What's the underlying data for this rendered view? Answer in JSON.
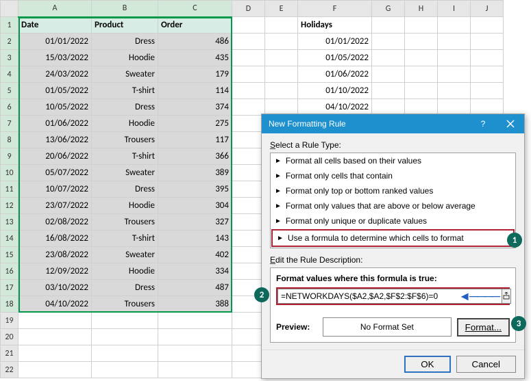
{
  "columns": [
    "A",
    "B",
    "C",
    "D",
    "E",
    "F",
    "G",
    "H",
    "I",
    "J"
  ],
  "headers": {
    "date": "Date",
    "product": "Product",
    "order": "Order",
    "holidays": "Holidays"
  },
  "rows": [
    {
      "date": "01/01/2022",
      "product": "Dress",
      "order": 486
    },
    {
      "date": "15/03/2022",
      "product": "Hoodie",
      "order": 435
    },
    {
      "date": "24/03/2022",
      "product": "Sweater",
      "order": 179
    },
    {
      "date": "01/05/2022",
      "product": "T-shirt",
      "order": 114
    },
    {
      "date": "10/05/2022",
      "product": "Dress",
      "order": 374
    },
    {
      "date": "01/06/2022",
      "product": "Hoodie",
      "order": 275
    },
    {
      "date": "13/06/2022",
      "product": "Trousers",
      "order": 117
    },
    {
      "date": "20/06/2022",
      "product": "T-shirt",
      "order": 366
    },
    {
      "date": "05/07/2022",
      "product": "Sweater",
      "order": 389
    },
    {
      "date": "10/07/2022",
      "product": "Dress",
      "order": 395
    },
    {
      "date": "23/07/2022",
      "product": "Hoodie",
      "order": 304
    },
    {
      "date": "02/08/2022",
      "product": "Trousers",
      "order": 327
    },
    {
      "date": "16/08/2022",
      "product": "T-shirt",
      "order": 143
    },
    {
      "date": "23/08/2022",
      "product": "Sweater",
      "order": 402
    },
    {
      "date": "12/09/2022",
      "product": "Hoodie",
      "order": 334
    },
    {
      "date": "03/10/2022",
      "product": "Dress",
      "order": 487
    },
    {
      "date": "04/10/2022",
      "product": "Trousers",
      "order": 388
    }
  ],
  "holidays": [
    "01/01/2022",
    "01/05/2022",
    "01/06/2022",
    "01/10/2022",
    "04/10/2022"
  ],
  "dialog": {
    "title": "New Formatting Rule",
    "select_label": "Select a Rule Type:",
    "rules": [
      "Format all cells based on their values",
      "Format only cells that contain",
      "Format only top or bottom ranked values",
      "Format only values that are above or below average",
      "Format only unique or duplicate values",
      "Use a formula to determine which cells to format"
    ],
    "edit_label": "Edit the Rule Description:",
    "formula_label": "Format values where this formula is true:",
    "formula_value": "=NETWORKDAYS($A2,$A2,$F$2:$F$6)=0",
    "preview_label": "Preview:",
    "preview_text": "No Format Set",
    "format_btn": "Format...",
    "ok": "OK",
    "cancel": "Cancel"
  },
  "badges": {
    "b1": "1",
    "b2": "2",
    "b3": "3"
  },
  "colors": {
    "accent": "#00984a",
    "dialog_title": "#1e90cd",
    "badge": "#0d695c",
    "highlight": "#b02030",
    "header_bg": "#d6ece4",
    "data_bg": "#d9d9d9"
  }
}
